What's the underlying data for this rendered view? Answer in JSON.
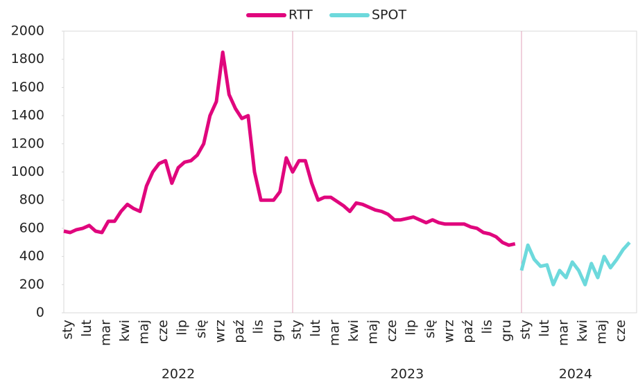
{
  "chart_data": {
    "type": "line",
    "categories": [
      "sty",
      null,
      null,
      "lut",
      null,
      null,
      "mar",
      null,
      null,
      "kwi",
      null,
      null,
      "maj",
      null,
      null,
      "cze",
      null,
      null,
      "lip",
      null,
      null,
      "się",
      null,
      null,
      "wrz",
      null,
      null,
      "paź",
      null,
      null,
      "lis",
      null,
      null,
      "gru",
      null,
      null,
      "sty",
      null,
      null,
      "lut",
      null,
      null,
      "mar",
      null,
      null,
      "kwi",
      null,
      null,
      "maj",
      null,
      null,
      "cze",
      null,
      null,
      "lip",
      null,
      null,
      "się",
      null,
      null,
      "wrz",
      null,
      null,
      "paź",
      null,
      null,
      "lis",
      null,
      null,
      "gru",
      null,
      null,
      "sty",
      null,
      null,
      "lut",
      null,
      null,
      "mar",
      null,
      null,
      "kwi",
      null,
      null,
      "maj",
      null,
      null,
      "cze",
      null,
      null
    ],
    "years": [
      "2022",
      "2023",
      "2024"
    ],
    "series": [
      {
        "name": "RTT",
        "color": "#e0067d",
        "values": [
          580,
          570,
          590,
          600,
          620,
          580,
          570,
          650,
          650,
          720,
          770,
          740,
          720,
          900,
          1000,
          1060,
          1080,
          920,
          1030,
          1070,
          1080,
          1120,
          1200,
          1400,
          1500,
          1850,
          1550,
          1450,
          1380,
          1400,
          1000,
          800,
          800,
          800,
          860,
          1100,
          1000,
          1080,
          1080,
          920,
          800,
          820,
          820,
          790,
          760,
          720,
          780,
          770,
          750,
          730,
          720,
          700,
          660,
          660,
          670,
          680,
          660,
          640,
          660,
          640,
          630,
          630,
          630,
          630,
          610,
          600,
          570,
          560,
          540,
          500,
          480,
          490,
          null,
          null,
          null,
          null,
          null,
          null,
          null,
          null,
          null,
          null,
          null,
          null,
          null,
          null,
          null,
          null,
          null,
          null
        ]
      },
      {
        "name": "SPOT",
        "color": "#6dd9dc",
        "values": [
          null,
          null,
          null,
          null,
          null,
          null,
          null,
          null,
          null,
          null,
          null,
          null,
          null,
          null,
          null,
          null,
          null,
          null,
          null,
          null,
          null,
          null,
          null,
          null,
          null,
          null,
          null,
          null,
          null,
          null,
          null,
          null,
          null,
          null,
          null,
          null,
          null,
          null,
          null,
          null,
          null,
          null,
          null,
          null,
          null,
          null,
          null,
          null,
          null,
          null,
          null,
          null,
          null,
          null,
          null,
          null,
          null,
          null,
          null,
          null,
          null,
          null,
          null,
          null,
          null,
          null,
          null,
          null,
          null,
          null,
          null,
          null,
          300,
          480,
          380,
          330,
          340,
          200,
          300,
          250,
          360,
          300,
          200,
          350,
          250,
          400,
          320,
          380,
          450,
          500
        ]
      }
    ],
    "ylim": [
      0,
      2000
    ],
    "yticks": [
      0,
      200,
      400,
      600,
      800,
      1000,
      1200,
      1400,
      1600,
      1800,
      2000
    ]
  }
}
